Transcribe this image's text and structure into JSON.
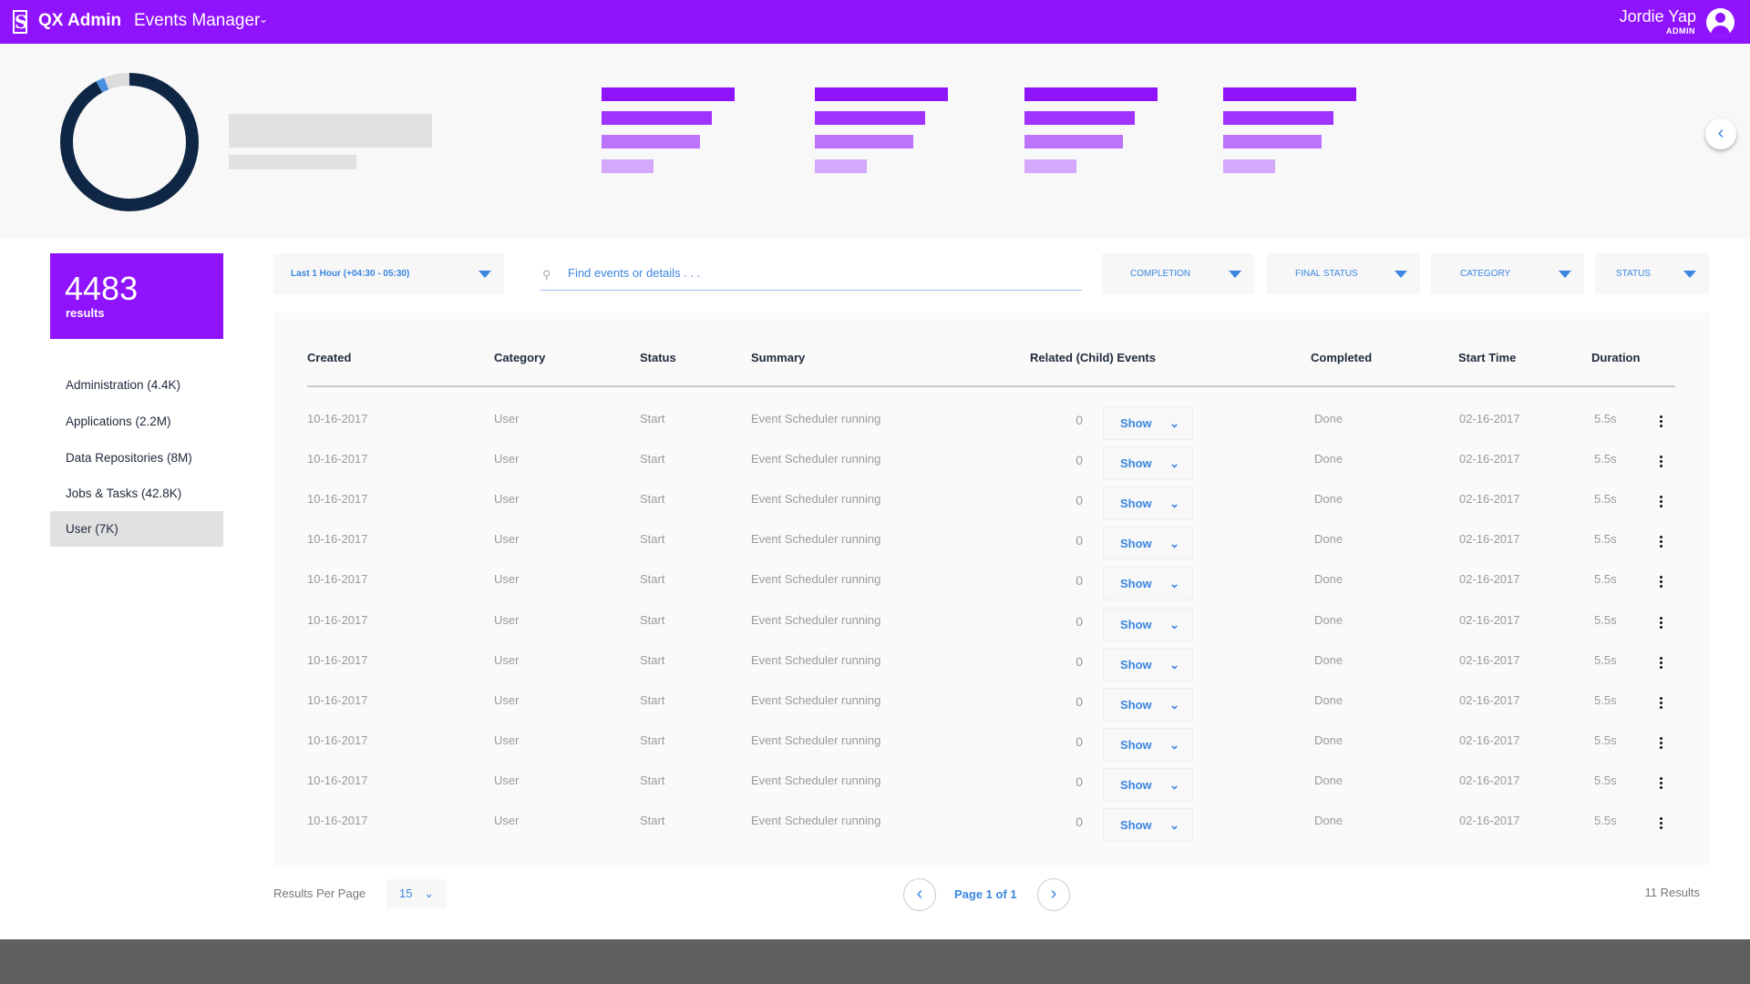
{
  "header": {
    "app_name": "QX Admin",
    "section": "Events Manager",
    "user_name": "Jordie Yap",
    "user_role": "ADMIN"
  },
  "colors": {
    "brand": "#9013fe",
    "accent": "#3a86e0",
    "donut": "#0f2744",
    "donut_secondary": "#4a90e2"
  },
  "summary": {
    "count": "4483",
    "label": "results"
  },
  "donut": {
    "main_fraction": 0.92,
    "accent_fraction": 0.02,
    "empty_fraction": 0.06
  },
  "bar_groups": [
    {
      "values": [
        1.0,
        0.83,
        0.74,
        0.39
      ]
    },
    {
      "values": [
        1.0,
        0.83,
        0.74,
        0.39
      ]
    },
    {
      "values": [
        1.0,
        0.83,
        0.74,
        0.39
      ]
    },
    {
      "values": [
        1.0,
        0.83,
        0.74,
        0.39
      ]
    }
  ],
  "sidebar": {
    "items": [
      {
        "label": "Administration (4.4K)"
      },
      {
        "label": "Applications (2.2M)"
      },
      {
        "label": "Data Repositories (8M)"
      },
      {
        "label": "Jobs & Tasks (42.8K)"
      },
      {
        "label": "User (7K)",
        "selected": true
      }
    ]
  },
  "filters": {
    "time_range": "Last 1 Hour (+04:30 - 05:30)",
    "search_placeholder": "Find events or details . . .",
    "completion": "COMPLETION",
    "final_status": "FINAL STATUS",
    "category": "CATEGORY",
    "status": "STATUS"
  },
  "table": {
    "columns": [
      "Created",
      "Category",
      "Status",
      "Summary",
      "Related (Child) Events",
      "Completed",
      "Start Time",
      "Duration"
    ],
    "show_label": "Show",
    "rows": [
      {
        "created": "10-16-2017",
        "category": "User",
        "status": "Start",
        "summary": "Event Scheduler running",
        "related": "0",
        "completed": "Done",
        "start": "02-16-2017",
        "duration": "5.5s"
      },
      {
        "created": "10-16-2017",
        "category": "User",
        "status": "Start",
        "summary": "Event Scheduler running",
        "related": "0",
        "completed": "Done",
        "start": "02-16-2017",
        "duration": "5.5s"
      },
      {
        "created": "10-16-2017",
        "category": "User",
        "status": "Start",
        "summary": "Event Scheduler running",
        "related": "0",
        "completed": "Done",
        "start": "02-16-2017",
        "duration": "5.5s"
      },
      {
        "created": "10-16-2017",
        "category": "User",
        "status": "Start",
        "summary": "Event Scheduler running",
        "related": "0",
        "completed": "Done",
        "start": "02-16-2017",
        "duration": "5.5s"
      },
      {
        "created": "10-16-2017",
        "category": "User",
        "status": "Start",
        "summary": "Event Scheduler running",
        "related": "0",
        "completed": "Done",
        "start": "02-16-2017",
        "duration": "5.5s"
      },
      {
        "created": "10-16-2017",
        "category": "User",
        "status": "Start",
        "summary": "Event Scheduler running",
        "related": "0",
        "completed": "Done",
        "start": "02-16-2017",
        "duration": "5.5s"
      },
      {
        "created": "10-16-2017",
        "category": "User",
        "status": "Start",
        "summary": "Event Scheduler running",
        "related": "0",
        "completed": "Done",
        "start": "02-16-2017",
        "duration": "5.5s"
      },
      {
        "created": "10-16-2017",
        "category": "User",
        "status": "Start",
        "summary": "Event Scheduler running",
        "related": "0",
        "completed": "Done",
        "start": "02-16-2017",
        "duration": "5.5s"
      },
      {
        "created": "10-16-2017",
        "category": "User",
        "status": "Start",
        "summary": "Event Scheduler running",
        "related": "0",
        "completed": "Done",
        "start": "02-16-2017",
        "duration": "5.5s"
      },
      {
        "created": "10-16-2017",
        "category": "User",
        "status": "Start",
        "summary": "Event Scheduler running",
        "related": "0",
        "completed": "Done",
        "start": "02-16-2017",
        "duration": "5.5s"
      },
      {
        "created": "10-16-2017",
        "category": "User",
        "status": "Start",
        "summary": "Event Scheduler running",
        "related": "0",
        "completed": "Done",
        "start": "02-16-2017",
        "duration": "5.5s"
      }
    ]
  },
  "pagination": {
    "per_page_label": "Results Per Page",
    "per_page": "15",
    "page_label": "Page 1 of 1",
    "total": "11 Results"
  }
}
